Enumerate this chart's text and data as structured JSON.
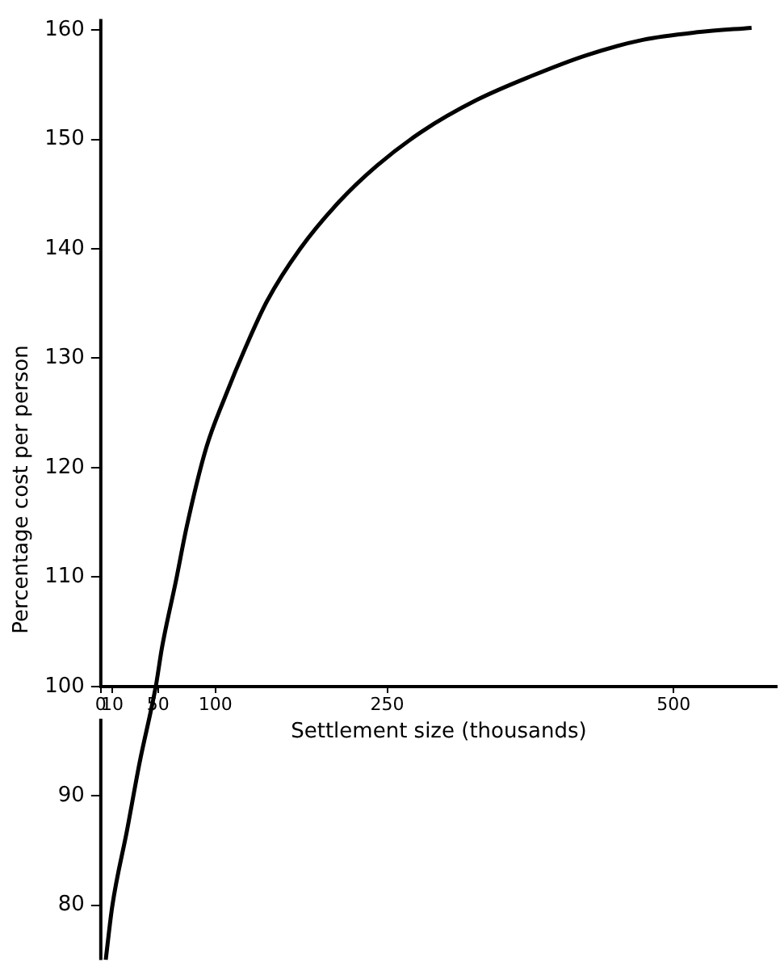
{
  "chart_data": {
    "type": "line",
    "xlabel": "Settlement size (thousands)",
    "ylabel": "Percentage cost per person",
    "x": [
      4.3,
      10,
      23,
      34,
      48,
      53.5,
      65.5,
      75,
      92,
      109,
      126,
      145,
      174,
      208,
      241,
      280,
      328,
      376,
      424,
      473,
      521,
      568
    ],
    "series": [
      {
        "color": "#000000",
        "values": [
          75,
          79.9,
          86.9,
          93.1,
          100,
          103.6,
          109.6,
          114.6,
          121.8,
          126.6,
          130.9,
          135.2,
          140,
          144.3,
          147.6,
          150.7,
          153.6,
          155.8,
          157.7,
          159.1,
          159.8,
          160.2
        ]
      }
    ],
    "xlim": [
      0,
      590
    ],
    "ylim": [
      75,
      161
    ],
    "xticks": [
      0,
      10,
      50,
      100,
      250,
      500
    ],
    "yticks": [
      80,
      90,
      100,
      110,
      120,
      130,
      140,
      150,
      160
    ],
    "marker": "none",
    "line_style": "solid"
  }
}
